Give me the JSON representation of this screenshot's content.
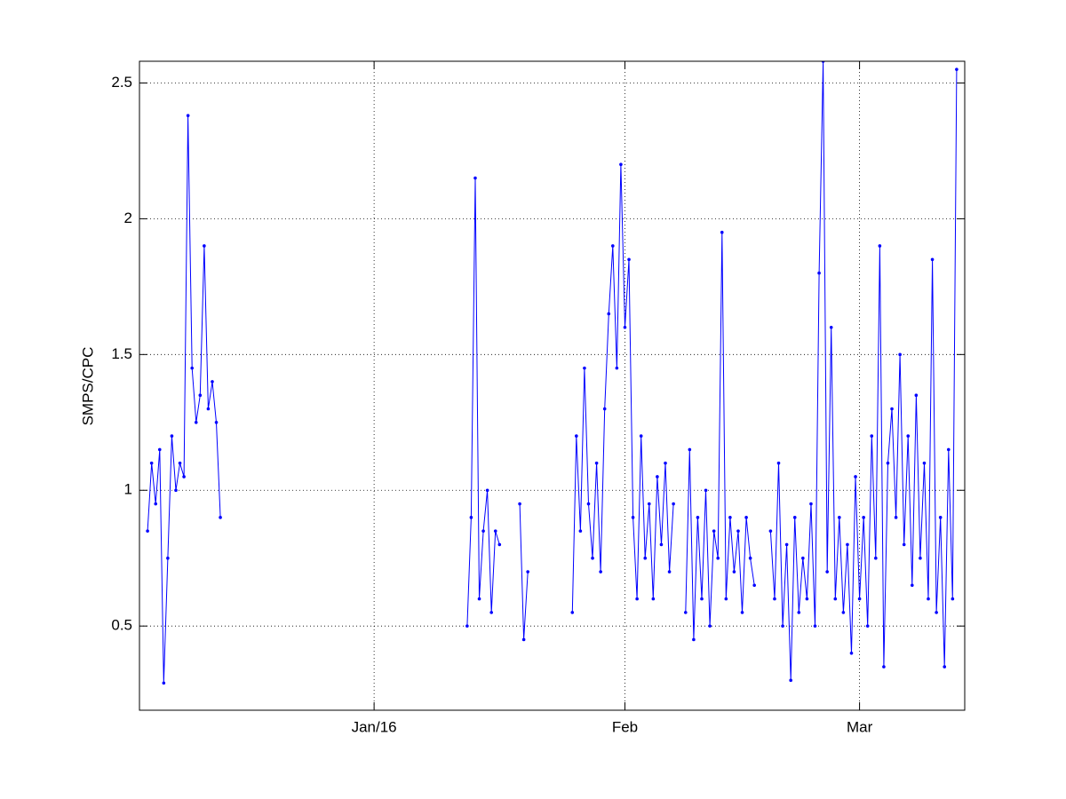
{
  "chart_data": {
    "type": "line",
    "y_label": "SMPS/CPC",
    "color": "#0000ff",
    "grid": true,
    "x": [
      -27,
      -26.5,
      -26,
      -25.5,
      -25,
      -24.5,
      -24,
      -23.5,
      -23,
      -22.5,
      -22,
      -21.5,
      -21,
      -20.5,
      -20,
      -19.5,
      -19,
      -18.5,
      -18,
      null,
      12.5,
      13,
      13.5,
      14,
      14.5,
      15,
      15.5,
      16,
      16.5,
      null,
      19,
      19.5,
      20,
      null,
      25.5,
      26,
      26.5,
      27,
      27.5,
      28,
      28.5,
      29,
      29.5,
      30,
      30.5,
      31,
      31.5,
      32,
      32.5,
      33,
      33.5,
      34,
      34.5,
      35,
      35.5,
      36,
      36.5,
      37,
      37.5,
      38,
      null,
      39.5,
      40,
      40.5,
      41,
      41.5,
      42,
      42.5,
      43,
      43.5,
      44,
      44.5,
      45,
      45.5,
      46,
      46.5,
      47,
      47.5,
      48,
      null,
      50,
      50.5,
      51,
      51.5,
      52,
      52.5,
      53,
      53.5,
      54,
      54.5,
      55,
      55.5,
      56,
      56.5,
      57,
      57.5,
      58,
      58.5,
      59,
      59.5,
      60,
      60.5,
      61,
      61.5,
      62,
      62.5,
      63,
      63.5,
      64,
      64.5,
      65,
      65.5,
      66,
      66.5,
      67,
      67.5,
      68,
      68.5,
      69,
      69.5,
      70,
      70.5,
      71,
      71.5,
      72,
      72.5,
      73
    ],
    "values": [
      0.85,
      1.1,
      0.95,
      1.15,
      0.29,
      0.75,
      1.2,
      1.0,
      1.1,
      1.05,
      2.38,
      1.45,
      1.25,
      1.35,
      1.9,
      1.3,
      1.4,
      1.25,
      0.9,
      null,
      0.5,
      0.9,
      2.15,
      0.6,
      0.85,
      1.0,
      0.55,
      0.85,
      0.8,
      null,
      0.95,
      0.45,
      0.7,
      null,
      0.55,
      1.2,
      0.85,
      1.45,
      0.95,
      0.75,
      1.1,
      0.7,
      1.3,
      1.65,
      1.9,
      1.45,
      2.2,
      1.6,
      1.85,
      0.9,
      0.6,
      1.2,
      0.75,
      0.95,
      0.6,
      1.05,
      0.8,
      1.1,
      0.7,
      0.95,
      null,
      0.55,
      1.15,
      0.45,
      0.9,
      0.6,
      1.0,
      0.5,
      0.85,
      0.75,
      1.95,
      0.6,
      0.9,
      0.7,
      0.85,
      0.55,
      0.9,
      0.75,
      0.65,
      null,
      0.85,
      0.6,
      1.1,
      0.5,
      0.8,
      0.3,
      0.9,
      0.55,
      0.75,
      0.6,
      0.95,
      0.5,
      1.8,
      2.58,
      0.7,
      1.6,
      0.6,
      0.9,
      0.55,
      0.8,
      0.4,
      1.05,
      0.6,
      0.9,
      0.5,
      1.2,
      0.75,
      1.9,
      0.35,
      1.1,
      1.3,
      0.9,
      1.5,
      0.8,
      1.2,
      0.65,
      1.35,
      0.75,
      1.1,
      0.6,
      1.85,
      0.55,
      0.9,
      0.35,
      1.15,
      0.6,
      2.55
    ],
    "xlim": [
      -28,
      74
    ],
    "ylim": [
      0.19,
      2.58
    ],
    "xticks": [
      {
        "value": 1,
        "label": "Jan/16"
      },
      {
        "value": 32,
        "label": "Feb"
      },
      {
        "value": 61,
        "label": "Mar"
      }
    ],
    "yticks": [
      0.5,
      1,
      1.5,
      2,
      2.5
    ]
  }
}
